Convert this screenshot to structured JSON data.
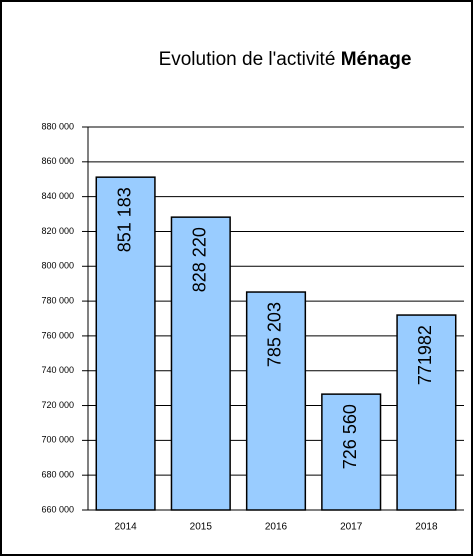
{
  "chart_data": {
    "type": "bar",
    "title": "Evolution de l'activité",
    "title_emphasis": "Ménage",
    "categories": [
      "2014",
      "2015",
      "2016",
      "2017",
      "2018"
    ],
    "values": [
      851183,
      828220,
      785203,
      726560,
      771982
    ],
    "value_labels": [
      "851 183",
      "828 220",
      "785 203",
      "726 560",
      "771982"
    ],
    "color": "#99ccff",
    "ylim": [
      660000,
      880000
    ],
    "yticks": [
      {
        "value": 660000,
        "label": "660 000"
      },
      {
        "value": 680000,
        "label": "680 000"
      },
      {
        "value": 700000,
        "label": "700 000"
      },
      {
        "value": 720000,
        "label": "720 000"
      },
      {
        "value": 740000,
        "label": "740 000"
      },
      {
        "value": 760000,
        "label": "760 000"
      },
      {
        "value": 780000,
        "label": "780 000"
      },
      {
        "value": 800000,
        "label": "800 000"
      },
      {
        "value": 820000,
        "label": "820 000"
      },
      {
        "value": 840000,
        "label": "840 000"
      },
      {
        "value": 860000,
        "label": "860 000"
      },
      {
        "value": 880000,
        "label": "880 000"
      }
    ],
    "grid": true
  }
}
